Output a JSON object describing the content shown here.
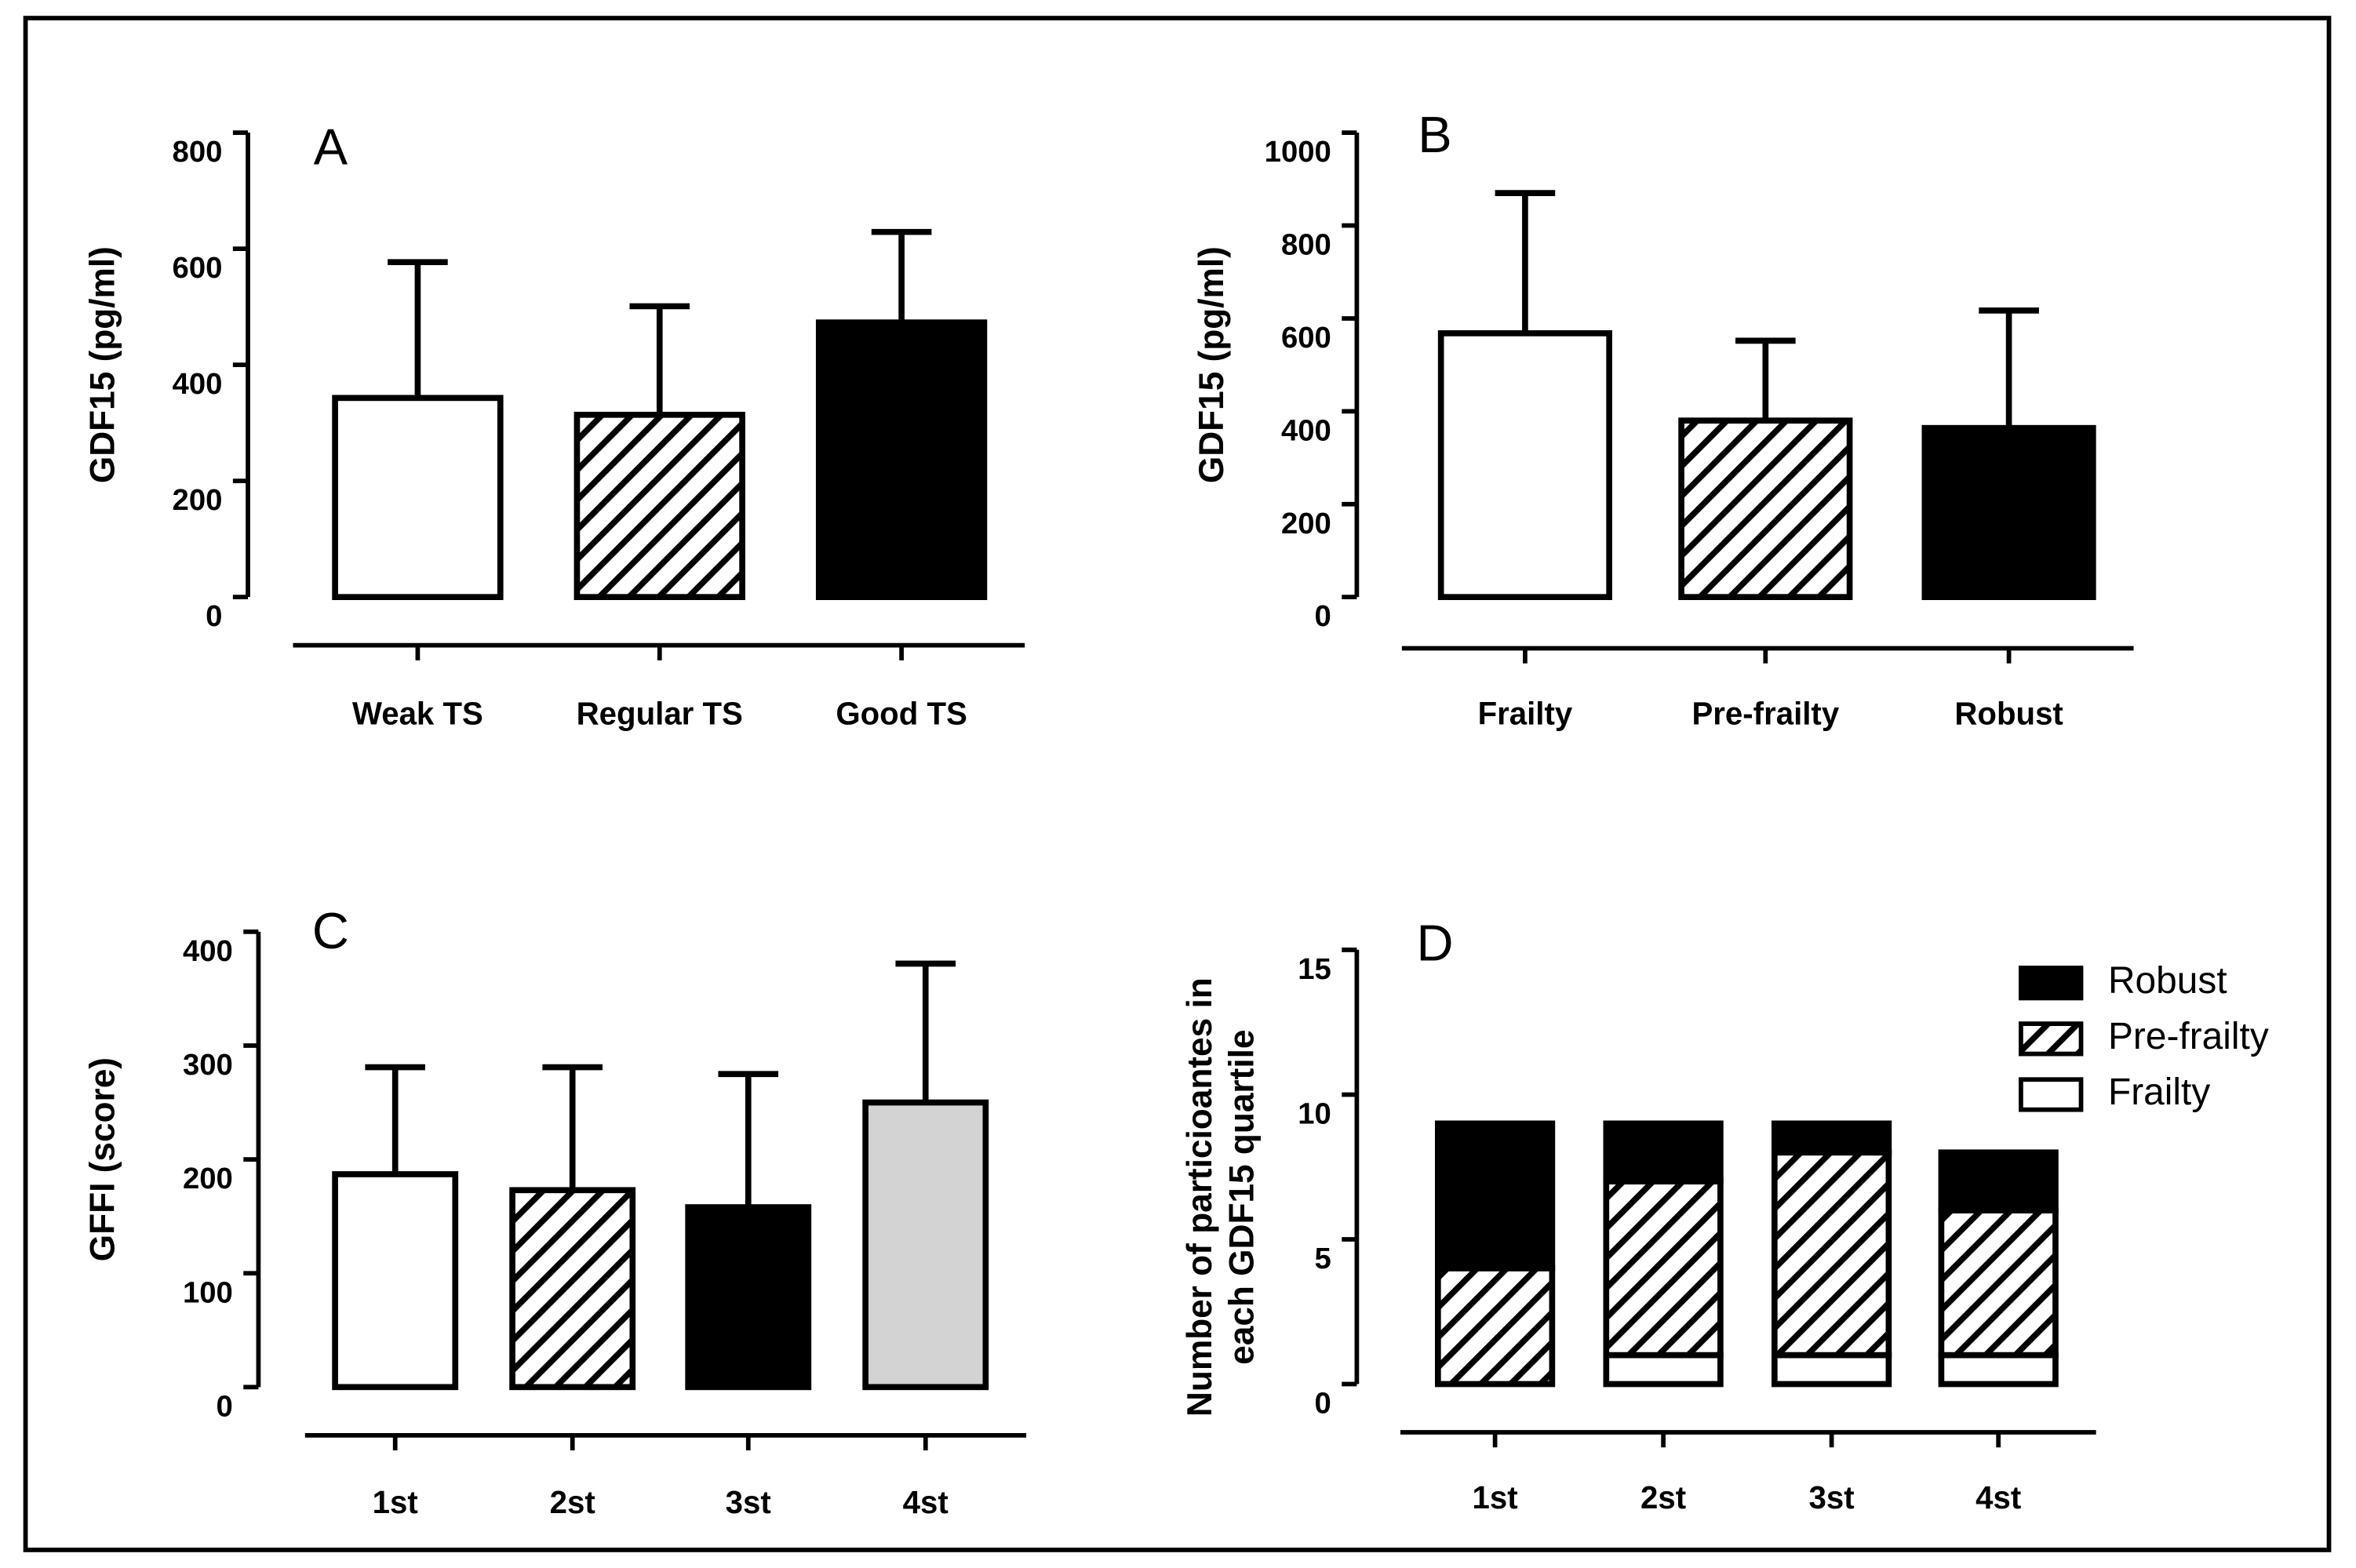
{
  "chart_data": [
    {
      "type": "bar",
      "panel": "A",
      "ylabel": "GDF15 (pg/ml)",
      "categories": [
        "Weak TS",
        "Regular TS",
        "Good TS"
      ],
      "values": [
        343,
        314,
        473
      ],
      "errors": [
        234,
        187,
        156
      ],
      "fills": [
        "white",
        "hatch",
        "black"
      ],
      "ylim": [
        0,
        800
      ],
      "yticks": [
        0,
        200,
        400,
        600,
        800
      ]
    },
    {
      "type": "bar",
      "panel": "B",
      "ylabel": "GDF15 (pg/ml)",
      "categories": [
        "Frailty",
        "Pre-frailty",
        "Robust"
      ],
      "values": [
        568,
        380,
        364
      ],
      "errors": [
        302,
        172,
        253
      ],
      "fills": [
        "white",
        "hatch",
        "black"
      ],
      "ylim": [
        0,
        1000
      ],
      "yticks": [
        0,
        200,
        400,
        600,
        800,
        1000
      ]
    },
    {
      "type": "bar",
      "panel": "C",
      "ylabel": "GFFI (score)",
      "categories": [
        "1st",
        "2st",
        "3st",
        "4st"
      ],
      "values": [
        187,
        173,
        158,
        250
      ],
      "errors": [
        94,
        108,
        117,
        122
      ],
      "fills": [
        "white",
        "hatch",
        "black",
        "#d3d3d3"
      ],
      "ylim": [
        0,
        400
      ],
      "yticks": [
        0,
        100,
        200,
        300,
        400
      ]
    },
    {
      "type": "stacked-bar",
      "panel": "D",
      "ylabel": [
        "Number of particioantes in",
        "each GDF15 quartile"
      ],
      "categories": [
        "1st",
        "2st",
        "3st",
        "4st"
      ],
      "series": [
        {
          "name": "Frailty",
          "fill": "white",
          "values": [
            0,
            1,
            1,
            1
          ]
        },
        {
          "name": "Pre-frailty",
          "fill": "hatch",
          "values": [
            4,
            6,
            7,
            5
          ]
        },
        {
          "name": "Robust",
          "fill": "black",
          "values": [
            5,
            2,
            1,
            2
          ]
        }
      ],
      "ylim": [
        0,
        15
      ],
      "yticks": [
        0,
        5,
        10,
        15
      ],
      "legend": "top-right"
    }
  ]
}
